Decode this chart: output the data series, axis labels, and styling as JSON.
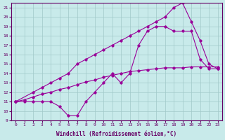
{
  "xlabel": "Windchill (Refroidissement éolien,°C)",
  "bg_color": "#c8eaea",
  "grid_color": "#a0c8c8",
  "line_color": "#990099",
  "xlim": [
    -0.5,
    23.5
  ],
  "ylim": [
    9,
    21.5
  ],
  "xticks": [
    0,
    1,
    2,
    3,
    4,
    5,
    6,
    7,
    8,
    9,
    10,
    11,
    12,
    13,
    14,
    15,
    16,
    17,
    18,
    19,
    20,
    21,
    22,
    23
  ],
  "yticks": [
    9,
    10,
    11,
    12,
    13,
    14,
    15,
    16,
    17,
    18,
    19,
    20,
    21
  ],
  "line1_x": [
    0,
    1,
    2,
    3,
    4,
    5,
    6,
    7,
    8,
    9,
    10,
    11,
    12,
    13,
    14,
    15,
    16,
    17,
    18,
    19,
    20,
    21,
    22,
    23
  ],
  "line1_y": [
    11,
    11,
    11,
    11,
    11,
    10.5,
    9.5,
    9.5,
    11,
    12,
    13,
    14,
    13,
    14,
    17,
    18.5,
    19,
    19,
    18.5,
    18.5,
    18.5,
    15.5,
    14.5,
    14.5
  ],
  "line2_x": [
    0,
    2,
    3,
    4,
    5,
    6,
    7,
    8,
    9,
    10,
    11,
    12,
    13,
    14,
    15,
    16,
    17,
    18,
    19,
    20,
    21,
    22,
    23
  ],
  "line2_y": [
    11,
    12,
    12.5,
    13,
    13.5,
    14,
    15,
    15.5,
    16,
    16.5,
    17,
    17.5,
    18,
    18.5,
    19,
    19.5,
    20,
    21,
    21.5,
    19.5,
    17.5,
    15,
    14.5
  ],
  "line3_x": [
    0,
    1,
    2,
    3,
    4,
    5,
    6,
    7,
    8,
    9,
    10,
    11,
    12,
    13,
    14,
    15,
    16,
    17,
    18,
    19,
    20,
    21,
    22,
    23
  ],
  "line3_y": [
    11,
    11.2,
    11.5,
    11.8,
    12.0,
    12.3,
    12.5,
    12.8,
    13.1,
    13.3,
    13.6,
    13.8,
    14.0,
    14.2,
    14.3,
    14.4,
    14.5,
    14.6,
    14.6,
    14.6,
    14.7,
    14.7,
    14.7,
    14.7
  ]
}
